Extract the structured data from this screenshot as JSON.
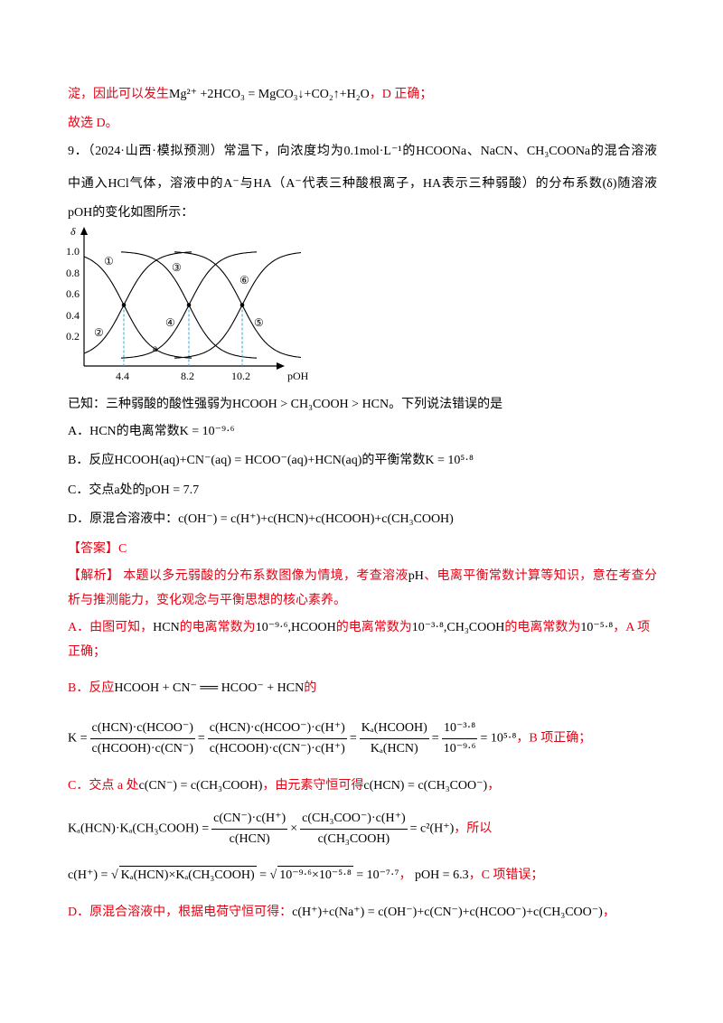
{
  "lines": [
    [
      "淀，因此可以发生",
      "Mg²⁺ +2HCO₃ = MgCO₃↓+CO₂↑+H₂O",
      "，D 正确；"
    ],
    [
      "故选 D。"
    ],
    [
      "9．（2024·山西·模拟预测）常温下，向浓度均为0.1mol·L⁻¹的HCOONa、NaCN、CH₃COONa的混合溶液"
    ],
    [
      "中通入HCl气体，溶液中的A⁻与HA（A⁻代表三种酸根离子，HA表示三种弱酸）的分布系数(δ)随溶液"
    ],
    [
      "pOH的变化如图所示："
    ],
    [
      "已知：三种弱酸的酸性强弱为HCOOH > CH₃COOH > HCN。下列说法错误的是"
    ],
    [
      "A．HCN的电离常数K = 10⁻⁹·⁶"
    ],
    [
      "B．反应HCOOH(aq)+CN⁻(aq) = HCOO⁻(aq)+HCN(aq)的平衡常数K = 10⁵·⁸"
    ],
    [
      "C．交点a处的pOH = 7.7"
    ],
    [
      "D．原混合溶液中：c(OH⁻) = c(H⁺)+c(HCN)+c(HCOOH)+c(CH₃COOH)"
    ],
    [
      "【答案】C"
    ],
    [
      "【解析】",
      " 本题以多元弱酸的分布系数图像为情境，考查溶液",
      "pH",
      "、电离平衡常数计算等知识，意在考查分"
    ],
    [
      "析与推测能力，变化观念与平衡思想的核心素养。"
    ],
    [
      "A．由图可知，",
      "HCN",
      "的电离常数为",
      "10⁻⁹·⁶,HCOOH",
      "的电离常数为",
      "10⁻³·⁸,CH₃COOH",
      "的电离常数为",
      "10⁻⁵·⁸",
      "，A 项"
    ],
    [
      "正确；"
    ],
    [
      "B．反应",
      "HCOOH + CN⁻ ══ HCOO⁻ + HCN",
      "的"
    ],
    [
      "K =",
      "c(HCN)·c(HCOO⁻)",
      "c(HCOOH)·c(CN⁻)",
      "=",
      "c(HCN)·c(HCOO⁻)·c(H⁺)",
      "c(HCOOH)·c(CN⁻)·c(H⁺)",
      "=",
      "Kₐ(HCOOH)",
      "Kₐ(HCN)",
      "=",
      "10⁻³·⁸",
      "10⁻⁹·⁶",
      "= 10⁵·⁸",
      "，B 项正确；"
    ],
    [
      "C．交点 a 处",
      "c(CN⁻) = c(CH₃COOH)",
      "，由元素守恒可得",
      "c(HCN) = c(CH₃COO⁻)",
      "，"
    ],
    [
      "Kₐ(HCN)·Kₐ(CH₃COOH) =",
      "c(CN⁻)·c(H⁺)",
      "c(HCN)",
      "×",
      "c(CH₃COO⁻)·c(H⁺)",
      "c(CH₃COOH)",
      "= c²(H⁺)",
      "，所以"
    ],
    [
      "c(H⁺) =",
      "Kₐ(HCN)×Kₐ(CH₃COOH)",
      "=",
      "10⁻⁹·⁶×10⁻⁵·⁸",
      "= 10⁻⁷·⁷",
      "，",
      "pOH = 6.3",
      "，C 项错误；"
    ],
    [
      "D．原混合溶液中，根据电荷守恒可得：",
      "c(H⁺)+c(Na⁺) = c(OH⁻)+c(CN⁻)+c(HCOO⁻)+c(CH₃COO⁻)",
      "，"
    ]
  ],
  "figure": {
    "y_label": "δ",
    "x_label": "pOH",
    "yticks": [
      "1.0",
      "0.8",
      "0.6",
      "0.4",
      "0.2"
    ],
    "xticks": [
      "4.4",
      "8.2",
      "10.2"
    ],
    "curve_labels": [
      "①",
      "②",
      "③",
      "④",
      "⑤",
      "⑥"
    ],
    "point_label": "a"
  }
}
